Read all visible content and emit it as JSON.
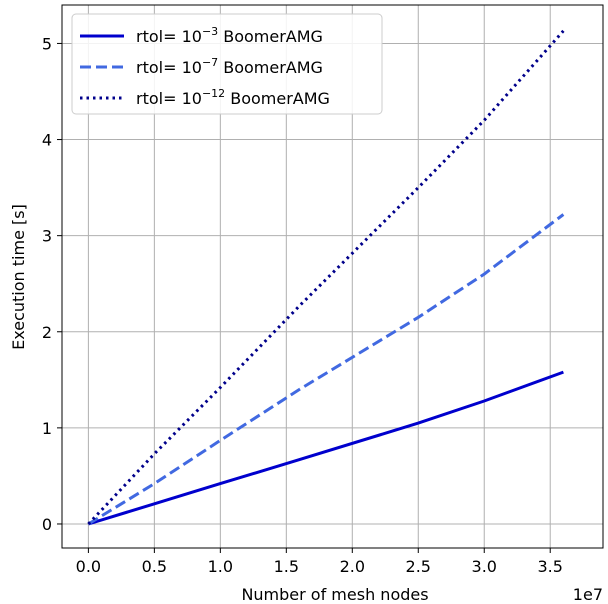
{
  "chart_data": {
    "type": "line",
    "xlabel": "Number of mesh nodes",
    "ylabel": "Execution time [s]",
    "x_offset_label": "1e7",
    "xlim": [
      -0.2,
      3.9
    ],
    "ylim": [
      -0.25,
      5.4
    ],
    "grid": true,
    "legend_position": "upper-left",
    "xticks": [
      0.0,
      0.5,
      1.0,
      1.5,
      2.0,
      2.5,
      3.0,
      3.5
    ],
    "xtick_labels": [
      "0.0",
      "0.5",
      "1.0",
      "1.5",
      "2.0",
      "2.5",
      "3.0",
      "3.5"
    ],
    "yticks": [
      0,
      1,
      2,
      3,
      4,
      5
    ],
    "ytick_labels": [
      "0",
      "1",
      "2",
      "3",
      "4",
      "5"
    ],
    "series": [
      {
        "name_prefix": "rtol= 10",
        "name_exp": "−3",
        "name_suffix": " BoomerAMG",
        "style": "solid",
        "color": "#0000cd",
        "x": [
          0.0,
          0.5,
          1.0,
          1.6,
          2.5,
          3.0,
          3.6
        ],
        "y": [
          0.0,
          0.21,
          0.42,
          0.67,
          1.05,
          1.28,
          1.58
        ]
      },
      {
        "name_prefix": "rtol= 10",
        "name_exp": "−7",
        "name_suffix": " BoomerAMG",
        "style": "dashed",
        "color": "#4169e1",
        "x": [
          0.0,
          0.5,
          1.0,
          1.6,
          2.5,
          3.0,
          3.6
        ],
        "y": [
          0.0,
          0.42,
          0.87,
          1.4,
          2.15,
          2.6,
          3.22
        ]
      },
      {
        "name_prefix": "rtol= 10",
        "name_exp": "−12",
        "name_suffix": " BoomerAMG",
        "style": "dotted",
        "color": "#00008b",
        "x": [
          0.0,
          0.5,
          1.0,
          1.6,
          2.5,
          3.0,
          3.6
        ],
        "y": [
          0.0,
          0.73,
          1.42,
          2.27,
          3.5,
          4.2,
          5.13
        ]
      }
    ]
  }
}
